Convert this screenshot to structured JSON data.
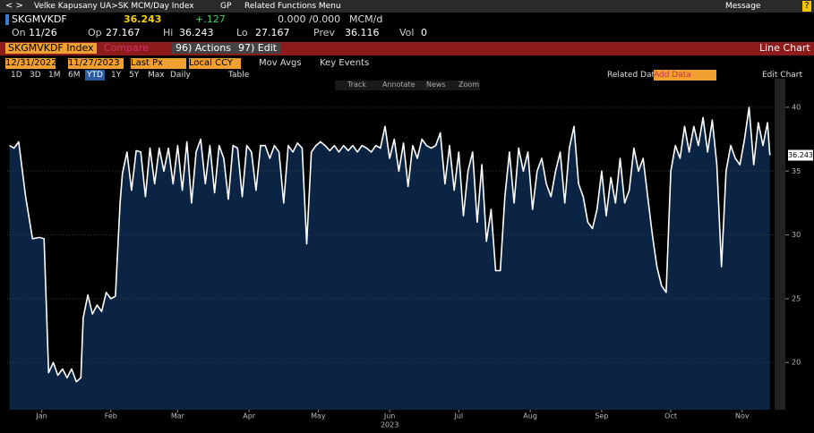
{
  "ui": {
    "topbar": {
      "path": "Velke Kapusany UA>SK MCM/Day Index",
      "gp": "GP",
      "related": "Related Functions Menu",
      "message": "Message"
    },
    "quote": {
      "ticker": "SKGMVKDF",
      "last": "36.243",
      "change": "+.127",
      "bidask": "0.000 /0.000",
      "unit": "MCM/d"
    },
    "stats": [
      {
        "label": "On",
        "value": "11/26"
      },
      {
        "label": "Op",
        "value": "27.167"
      },
      {
        "label": "Hi",
        "value": "36.243"
      },
      {
        "label": "Lo",
        "value": "27.167"
      },
      {
        "label": "Prev",
        "value": "36.116"
      },
      {
        "label": "Vol",
        "value": "0"
      }
    ],
    "menubar": {
      "security": "SKGMVKDF Index",
      "compare": "Compare",
      "actions": "96) Actions",
      "edit": "97) Edit",
      "chart_type": "Line Chart"
    },
    "settings": {
      "start": "12/31/2022",
      "end": "11/27/2023",
      "field": "Last Px",
      "currency": "Local CCY",
      "mov_avgs": "Mov Avgs",
      "key_events": "Key Events"
    },
    "periods": [
      "1D",
      "3D",
      "1M",
      "6M",
      "YTD",
      "1Y",
      "5Y",
      "Max"
    ],
    "frequency": "Daily",
    "table": "Table",
    "related_data": "Related Data",
    "add_data": "Add Data",
    "edit_chart": "Edit Chart",
    "tools": [
      "Track",
      "Annotate",
      "News",
      "Zoom"
    ]
  },
  "chart_data": {
    "type": "line",
    "x_label": "2023",
    "color": "#ffffff",
    "fill": "#0b2444",
    "x": [
      1,
      3,
      5,
      8,
      11,
      14,
      16,
      18,
      20,
      22,
      24,
      26,
      28,
      30,
      32,
      33,
      35,
      37,
      39,
      41,
      43,
      45,
      47,
      49,
      50,
      52,
      54,
      56,
      58,
      60,
      62,
      64,
      66,
      68,
      70,
      72,
      74,
      76,
      78,
      80,
      82,
      84,
      86,
      88,
      90,
      92,
      94,
      96,
      98,
      100,
      102,
      104,
      106,
      108,
      110,
      112,
      114,
      116,
      118,
      120,
      122,
      124,
      126,
      128,
      130,
      132,
      134,
      136,
      138,
      140,
      142,
      144,
      146,
      148,
      150,
      152,
      154,
      156,
      158,
      160,
      162,
      164,
      166,
      168,
      170,
      172,
      174,
      176,
      178,
      180,
      182,
      184,
      186,
      188,
      190,
      192,
      194,
      196,
      198,
      200,
      202,
      204,
      206,
      208,
      210,
      212,
      214,
      216,
      218,
      220,
      222,
      224,
      226,
      228,
      230,
      232,
      234,
      236,
      238,
      240,
      242,
      244,
      246,
      248,
      250,
      252,
      254,
      256,
      258,
      260,
      262,
      264,
      266,
      268,
      270,
      272,
      274,
      276,
      278,
      280,
      282,
      284,
      286,
      288,
      290,
      292,
      294,
      296,
      298,
      300,
      302,
      304,
      306,
      308,
      310,
      312,
      314,
      316,
      318,
      320,
      322,
      324,
      326,
      328,
      330,
      331
    ],
    "values": [
      37,
      36.8,
      37.3,
      33,
      29.7,
      29.8,
      29.7,
      19.2,
      20,
      19,
      19.5,
      18.8,
      19.5,
      18.5,
      18.8,
      23.5,
      25.3,
      23.8,
      24.5,
      24,
      25.5,
      25,
      25.2,
      32.5,
      34.8,
      36.5,
      33.5,
      36.6,
      36.5,
      33,
      36.8,
      34,
      36.8,
      35,
      36.8,
      34,
      37,
      33.5,
      37.3,
      32.5,
      36.5,
      37.5,
      34,
      37,
      33.3,
      37,
      36,
      32.8,
      37,
      36.8,
      33,
      37,
      36.5,
      33.5,
      37,
      37,
      36,
      37,
      36.5,
      32.5,
      37,
      36.5,
      37.2,
      36.8,
      29.3,
      36.5,
      37,
      37.3,
      37,
      36.6,
      37,
      36.5,
      37,
      36.6,
      37,
      36.5,
      37,
      36.8,
      36.5,
      37,
      36.8,
      38.5,
      36,
      37.5,
      35,
      37.2,
      33.8,
      37,
      36,
      37.5,
      37,
      36.8,
      37,
      38,
      34,
      37,
      33.5,
      36.5,
      31.5,
      35,
      36.5,
      31,
      35.5,
      29.5,
      32,
      27.2,
      27.2,
      33,
      36.5,
      32.5,
      36.8,
      35,
      36.5,
      32,
      35,
      36,
      34,
      33,
      35,
      36.5,
      32.5,
      36.8,
      38.5,
      34,
      33,
      31,
      30.5,
      32,
      35,
      31.5,
      34.5,
      32.5,
      36,
      32.5,
      33.5,
      36.8,
      35,
      36,
      33,
      30,
      27.5,
      26,
      25.5,
      35,
      37,
      36,
      38.5,
      36.5,
      38.5,
      37,
      39.2,
      36.5,
      39,
      35.5,
      27.5,
      35,
      37,
      36,
      35.5,
      37.5,
      40,
      35.5,
      38.8,
      37,
      38.8,
      36.243
    ],
    "xlim": [
      0,
      335
    ],
    "xticks": [
      {
        "value": 15,
        "label": "Jan"
      },
      {
        "value": 45,
        "label": "Feb"
      },
      {
        "value": 74,
        "label": "Mar"
      },
      {
        "value": 105,
        "label": "Apr"
      },
      {
        "value": 135,
        "label": "May"
      },
      {
        "value": 166,
        "label": "Jun"
      },
      {
        "value": 196,
        "label": "Jul"
      },
      {
        "value": 227,
        "label": "Aug"
      },
      {
        "value": 258,
        "label": "Sep"
      },
      {
        "value": 288,
        "label": "Oct"
      },
      {
        "value": 319,
        "label": "Nov"
      }
    ],
    "ylim": [
      16.3,
      42.1
    ],
    "yticks": [
      20,
      25,
      30,
      35,
      40
    ],
    "grid": true
  }
}
